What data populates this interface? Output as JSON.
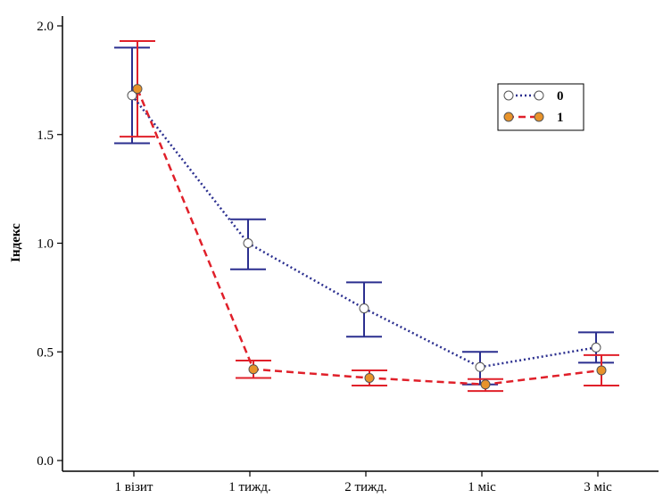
{
  "chart_data": {
    "type": "line",
    "title": "",
    "xlabel": "",
    "ylabel": "Індекс",
    "ylim": [
      0.0,
      2.0
    ],
    "yticks": [
      "0.0",
      "0.5",
      "1.0",
      "1.5",
      "2.0"
    ],
    "categories": [
      "1 візит",
      "1 тижд.",
      "2 тижд.",
      "1 міс",
      "3 міс"
    ],
    "grid": false,
    "legend_position": "top-right",
    "series": [
      {
        "name": "0",
        "line_color": "#2b2f8f",
        "marker_fill": "#ffffff",
        "line_style": "dotted",
        "values": [
          1.68,
          1.0,
          0.7,
          0.43,
          0.52
        ],
        "err_low": [
          1.46,
          0.88,
          0.57,
          0.35,
          0.45
        ],
        "err_high": [
          1.9,
          1.11,
          0.82,
          0.5,
          0.59
        ]
      },
      {
        "name": "1",
        "line_color": "#e0202a",
        "marker_fill": "#e8932a",
        "line_style": "dashed",
        "values": [
          1.71,
          0.42,
          0.38,
          0.35,
          0.415
        ],
        "err_low": [
          1.49,
          0.38,
          0.345,
          0.32,
          0.345
        ],
        "err_high": [
          1.93,
          0.46,
          0.415,
          0.375,
          0.485
        ]
      }
    ]
  }
}
